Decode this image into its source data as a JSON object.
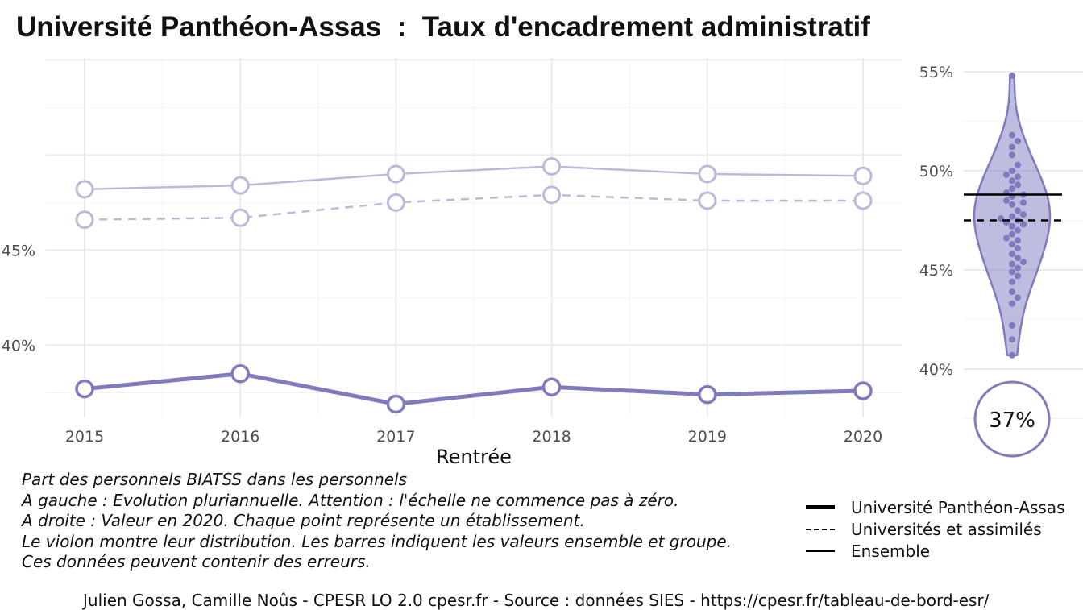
{
  "title": "Université Panthéon-Assas  :  Taux d'encadrement administratif",
  "chart_data": [
    {
      "type": "line",
      "xlabel": "Rentrée",
      "ylabel": "",
      "x": [
        2015,
        2016,
        2017,
        2018,
        2019,
        2020
      ],
      "x_tick_labels": [
        "2015",
        "2016",
        "2017",
        "2018",
        "2019",
        "2020"
      ],
      "ylim": [
        36.2,
        55.1
      ],
      "y_ticks": [
        40,
        45
      ],
      "y_tick_labels": [
        "40%",
        "45%"
      ],
      "grid": true,
      "series": [
        {
          "name": "Université Panthéon-Assas",
          "style": "solid-thick",
          "color": "#7f7bbf",
          "values": [
            37.7,
            38.5,
            36.9,
            37.8,
            37.4,
            37.6
          ]
        },
        {
          "name": "Universités et assimilés",
          "style": "dashed",
          "color": "#bcbadb",
          "values": [
            46.6,
            46.7,
            47.5,
            47.9,
            47.6,
            47.6
          ]
        },
        {
          "name": "Ensemble",
          "style": "solid",
          "color": "#bcbadb",
          "values": [
            48.2,
            48.4,
            49.0,
            49.4,
            49.0,
            48.9
          ]
        }
      ]
    },
    {
      "type": "violin",
      "ylim": [
        37.5,
        56.5
      ],
      "y_ticks": [
        40,
        45,
        50,
        55
      ],
      "y_tick_labels": [
        "40%",
        "45%",
        "50%",
        "55%"
      ],
      "reference_lines": [
        {
          "name": "Ensemble",
          "style": "solid",
          "value": 48.8
        },
        {
          "name": "Universités et assimilés",
          "style": "dashed",
          "value": 47.5
        }
      ],
      "highlight_value_label": "37%",
      "highlight_value": 37.4,
      "points": [
        54.8,
        51.8,
        51.5,
        51.2,
        50.8,
        50.3,
        50.0,
        49.8,
        49.7,
        49.5,
        49.3,
        49.1,
        48.9,
        48.8,
        48.7,
        48.5,
        48.4,
        48.3,
        48.0,
        47.8,
        47.7,
        47.6,
        47.5,
        47.4,
        47.3,
        47.2,
        47.0,
        46.8,
        46.6,
        46.5,
        46.3,
        46.1,
        45.8,
        45.6,
        45.4,
        45.3,
        45.1,
        44.9,
        44.7,
        44.4,
        43.9,
        43.6,
        43.3,
        42.2,
        41.5,
        40.7
      ],
      "color": "#7f7bbf"
    }
  ],
  "caption": [
    "Part des personnels BIATSS dans les personnels",
    "A gauche : Evolution pluriannuelle. Attention : l'échelle ne commence pas à zéro.",
    "A droite : Valeur en 2020. Chaque point représente un établissement.",
    "Le violon montre leur distribution. Les barres indiquent les valeurs ensemble et groupe.",
    "Ces données peuvent contenir des erreurs."
  ],
  "legend": {
    "items": [
      {
        "label": "Université Panthéon-Assas",
        "style": "solid-thick"
      },
      {
        "label": "Universités et assimilés",
        "style": "dashed"
      },
      {
        "label": "Ensemble",
        "style": "solid"
      }
    ]
  },
  "footer": "Julien Gossa, Camille Noûs - CPESR LO 2.0 cpesr.fr - Source : données SIES - https://cpesr.fr/tableau-de-bord-esr/"
}
